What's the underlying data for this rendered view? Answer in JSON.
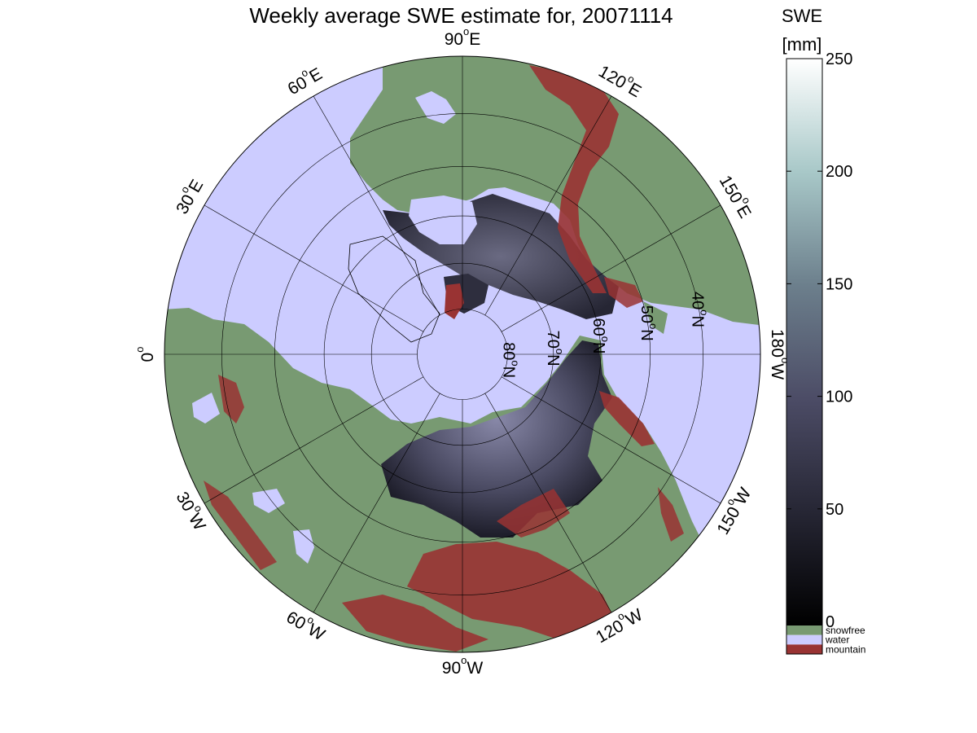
{
  "title": "Weekly average SWE estimate for, 20071114",
  "colorbar": {
    "title_line1": "SWE",
    "title_line2": "[mm]",
    "ticks": [
      0,
      50,
      100,
      150,
      200,
      250
    ],
    "range": [
      0,
      250
    ],
    "gradient": [
      "#000000",
      "#262634",
      "#4c4c66",
      "#6c7f8c",
      "#a8c8c8",
      "#ffffff"
    ],
    "categories": [
      {
        "label": "snowfree",
        "color": "#789a72"
      },
      {
        "label": "water",
        "color": "#ccccff"
      },
      {
        "label": "mountain",
        "color": "#993333"
      }
    ]
  },
  "map": {
    "projection": "north-polar-stereographic",
    "colors": {
      "water": "#ccccff",
      "land": "#789a72",
      "mountain": "#993333",
      "snow_dark": "#2e2e3e",
      "snow_mid": "#5a5a72",
      "coast": "#000000"
    },
    "lat_circles": [
      40,
      50,
      60,
      70,
      80
    ],
    "lat_labels": [
      "40oN",
      "50oN",
      "60oN",
      "70oN",
      "80oN"
    ],
    "lon_lines": [
      0,
      30,
      60,
      90,
      120,
      150,
      180,
      210,
      240,
      270,
      300,
      330
    ],
    "lon_labels": [
      {
        "text": "90oW",
        "lon": 270
      },
      {
        "text": "120oW",
        "lon": 240
      },
      {
        "text": "150oW",
        "lon": 210
      },
      {
        "text": "180oW",
        "lon": 180
      },
      {
        "text": "150oE",
        "lon": 150
      },
      {
        "text": "120oE",
        "lon": 120
      },
      {
        "text": "90oE",
        "lon": 90
      },
      {
        "text": "60oE",
        "lon": 60
      },
      {
        "text": "30oE",
        "lon": 30
      },
      {
        "text": "0o",
        "lon": 0
      },
      {
        "text": "30oW",
        "lon": 330
      },
      {
        "text": "60oW",
        "lon": 300
      }
    ]
  }
}
